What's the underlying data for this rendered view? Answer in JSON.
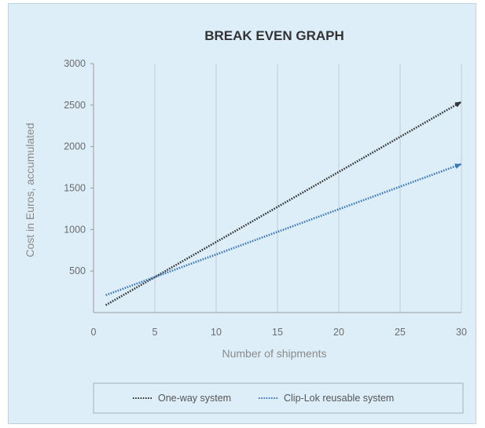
{
  "chart_data": {
    "type": "line",
    "title": "BREAK EVEN GRAPH",
    "xlabel": "Number of shipments",
    "ylabel": "Cost in Euros, accumulated",
    "xlim": [
      0,
      30
    ],
    "ylim": [
      0,
      3000
    ],
    "x_ticks": [
      "0",
      "5",
      "10",
      "15",
      "20",
      "25",
      "30"
    ],
    "y_ticks": [
      "500",
      "1000",
      "1500",
      "2000",
      "2500",
      "3000"
    ],
    "grid": "vertical",
    "legend_position": "bottom",
    "series": [
      {
        "name": "One-way system",
        "color": "#333333",
        "style": "dotted",
        "x": [
          1,
          30
        ],
        "y": [
          90,
          2540
        ]
      },
      {
        "name": "Clip-Lok reusable system",
        "color": "#3a78b8",
        "style": "dotted",
        "x": [
          1,
          30
        ],
        "y": [
          210,
          1790
        ]
      }
    ]
  }
}
